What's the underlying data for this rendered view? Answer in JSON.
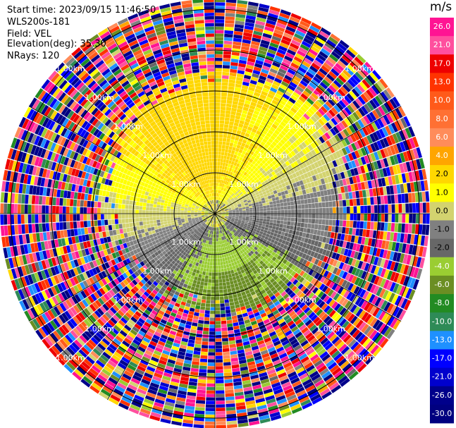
{
  "header": {
    "start_time": "Start time: 2023/09/15 11:46:50",
    "instrument": "WLS200s-181",
    "field": "Field: VEL",
    "elevation": "Elevation(deg): 35.30",
    "nrays": "NRays: 120"
  },
  "chart_data": {
    "type": "heatmap",
    "projection": "polar-ppi",
    "field": "VEL",
    "units": "m/s",
    "n_rays": 120,
    "range_rings_km": [
      1.0,
      2.0,
      3.0,
      4.0,
      5.0
    ],
    "ring_label": "1.00km",
    "ring_label_list": [
      "1.00km",
      "2.00km",
      "3.00km",
      "4.00km",
      "5.00km"
    ],
    "radial_lines_deg": [
      0,
      30,
      60,
      90,
      120,
      150,
      180,
      210,
      240,
      270,
      300,
      330
    ],
    "colorbar": {
      "label": "m/s",
      "tick_labels": [
        "26.0",
        "21.0",
        "17.0",
        "13.0",
        "10.0",
        "8.0",
        "6.0",
        "4.0",
        "2.0",
        "1.0",
        "0.0",
        "-1.0",
        "-2.0",
        "-4.0",
        "-6.0",
        "-8.0",
        "-10.0",
        "-13.0",
        "-17.0",
        "-21.0",
        "-26.0",
        "-30.0"
      ],
      "bin_edges": [
        30,
        26,
        21,
        17,
        13,
        10,
        8,
        6,
        4,
        2,
        1,
        0,
        -1,
        -2,
        -4,
        -6,
        -8,
        -10,
        -13,
        -17,
        -21,
        -26,
        -30
      ],
      "colors": [
        "#ff1493",
        "#ff4f9e",
        "#ee0000",
        "#ff3300",
        "#ff5a1a",
        "#ff7033",
        "#ff8c5a",
        "#ffa500",
        "#ffd700",
        "#ffff00",
        "#d3d36f",
        "#808080",
        "#676767",
        "#9acd32",
        "#6b8e23",
        "#228b22",
        "#2e8b57",
        "#1e90ff",
        "#0000ff",
        "#0000cd",
        "#00008b",
        "#000080"
      ]
    }
  }
}
